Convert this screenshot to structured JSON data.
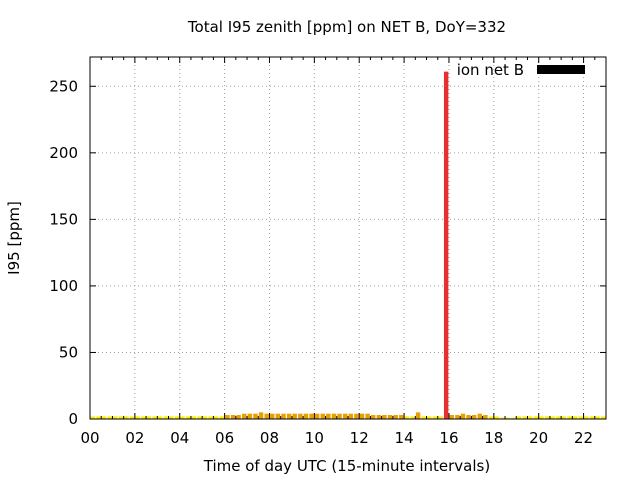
{
  "chart_data": {
    "type": "bar",
    "title": "Total I95 zenith [ppm] on NET B, DoY=332",
    "xlabel": "Time of day UTC (15-minute intervals)",
    "ylabel": "I95 [ppm]",
    "xlim": [
      0,
      23
    ],
    "ylim": [
      0,
      272
    ],
    "x_ticks": [
      0,
      2,
      4,
      6,
      8,
      10,
      12,
      14,
      16,
      18,
      20,
      22
    ],
    "x_tick_labels": [
      "00",
      "02",
      "04",
      "06",
      "08",
      "10",
      "12",
      "14",
      "16",
      "18",
      "20",
      "22"
    ],
    "y_ticks": [
      0,
      50,
      100,
      150,
      200,
      250
    ],
    "y_tick_labels": [
      "0",
      "50",
      "100",
      "150",
      "200",
      "250"
    ],
    "grid": true,
    "legend": {
      "position": "top-right",
      "entries": [
        {
          "label": "ion net B",
          "color": "#000000"
        }
      ]
    },
    "bar_interval_hours": 0.25,
    "color_scale": {
      "low": "#ffee00",
      "mid": "#e8a000",
      "high": "#e83030",
      "mid_threshold": 3,
      "high_threshold": 10
    },
    "series": [
      {
        "start_hour": 0,
        "values": [
          2,
          2,
          2,
          2,
          2,
          2,
          2,
          2,
          2,
          2,
          2,
          2,
          2,
          2,
          2,
          2,
          2,
          2,
          2,
          2,
          2,
          2,
          2,
          2,
          3,
          3,
          3,
          4,
          4,
          4,
          5,
          4,
          4,
          4,
          4,
          4,
          4,
          4,
          4,
          4,
          4,
          4,
          4,
          4,
          4,
          4,
          4,
          4,
          4,
          4,
          3,
          3,
          3,
          3,
          3,
          3,
          2,
          2,
          5,
          2,
          2,
          2,
          2,
          261,
          3,
          3,
          4,
          3,
          3,
          4,
          3,
          2,
          2,
          1,
          1,
          1,
          2,
          2,
          2,
          2,
          2,
          2,
          2,
          2,
          2,
          2,
          2,
          2,
          2,
          2,
          2,
          2
        ]
      }
    ]
  }
}
